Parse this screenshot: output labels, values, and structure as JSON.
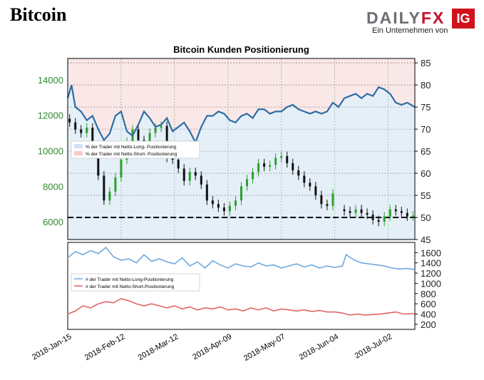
{
  "page": {
    "title": "Bitcoin"
  },
  "logo": {
    "text_main": "DAILY",
    "text_accent": "FX",
    "box_text": "IG",
    "subtitle": "Ein Unternehmen von"
  },
  "colors": {
    "long": "#2e6da4",
    "short": "#d9534f",
    "long_fill": "#cfe2f3",
    "short_fill": "#f5cccc",
    "price_label": "#2e8b2e",
    "candle_up": "#2ca02c",
    "candle_down": "#111111"
  },
  "chart_data": [
    {
      "type": "line",
      "title": "Bitcoin Kunden Positionierung",
      "left_axis_ticks": [
        "6000",
        "8000",
        "10000",
        "12000",
        "14000"
      ],
      "left_axis_range": [
        5000,
        15200
      ],
      "right_axis_ticks": [
        "45",
        "50",
        "55",
        "60",
        "65",
        "70",
        "75",
        "80",
        "85"
      ],
      "right_axis_range": [
        45,
        86
      ],
      "x_tick_labels": [
        "2018-Jan-15",
        "2018-Feb-12",
        "2018-Mar-12",
        "2018-Apr-09",
        "2018-May-07",
        "2018-Jun-04",
        "2018-Jul-02"
      ],
      "x_range": [
        "2018-01-15",
        "2018-07-16"
      ],
      "legend": [
        "% der Trader mit Netto-Long- Positionierung",
        "% der Trader mit Netto-Short- Positionierung"
      ],
      "legend_placement": "middle-left",
      "grid": true,
      "reference_line_pct": 50,
      "pct_long_series": {
        "name": "% der Trader mit Netto-Long- Positionierung",
        "x": [
          "2018-01-15",
          "2018-01-17",
          "2018-01-19",
          "2018-01-22",
          "2018-01-25",
          "2018-01-28",
          "2018-01-31",
          "2018-02-03",
          "2018-02-06",
          "2018-02-09",
          "2018-02-12",
          "2018-02-15",
          "2018-02-18",
          "2018-02-21",
          "2018-02-24",
          "2018-02-27",
          "2018-03-02",
          "2018-03-05",
          "2018-03-08",
          "2018-03-11",
          "2018-03-14",
          "2018-03-17",
          "2018-03-20",
          "2018-03-23",
          "2018-03-26",
          "2018-03-29",
          "2018-04-01",
          "2018-04-04",
          "2018-04-07",
          "2018-04-10",
          "2018-04-13",
          "2018-04-16",
          "2018-04-19",
          "2018-04-22",
          "2018-04-25",
          "2018-04-28",
          "2018-05-01",
          "2018-05-04",
          "2018-05-07",
          "2018-05-10",
          "2018-05-13",
          "2018-05-16",
          "2018-05-19",
          "2018-05-22",
          "2018-05-25",
          "2018-05-28",
          "2018-05-31",
          "2018-06-03",
          "2018-06-06",
          "2018-06-09",
          "2018-06-12",
          "2018-06-15",
          "2018-06-18",
          "2018-06-21",
          "2018-06-24",
          "2018-06-27",
          "2018-06-30",
          "2018-07-03",
          "2018-07-06",
          "2018-07-09",
          "2018-07-12",
          "2018-07-16"
        ],
        "values": [
          77,
          80,
          75,
          74,
          72,
          73,
          70,
          67.5,
          69,
          73,
          74,
          69.5,
          68.5,
          71,
          74,
          72.5,
          70.5,
          71,
          72.5,
          69.5,
          70.5,
          71.5,
          69.5,
          67,
          70.5,
          73,
          73,
          74,
          73.5,
          72,
          71.5,
          73,
          73.5,
          72.5,
          74.5,
          74.5,
          73.5,
          74,
          74,
          75,
          75.5,
          74.5,
          74,
          73.5,
          74,
          73.5,
          74,
          76,
          75,
          77,
          77.5,
          78,
          77,
          78,
          77.5,
          79.5,
          79,
          78,
          76,
          75.5,
          76,
          75
        ]
      },
      "price_candles": {
        "x": [
          "2018-01-16",
          "2018-01-19",
          "2018-01-22",
          "2018-01-25",
          "2018-01-28",
          "2018-01-31",
          "2018-02-03",
          "2018-02-06",
          "2018-02-09",
          "2018-02-12",
          "2018-02-15",
          "2018-02-18",
          "2018-02-21",
          "2018-02-24",
          "2018-02-27",
          "2018-03-02",
          "2018-03-05",
          "2018-03-08",
          "2018-03-11",
          "2018-03-14",
          "2018-03-17",
          "2018-03-20",
          "2018-03-23",
          "2018-03-26",
          "2018-03-29",
          "2018-04-01",
          "2018-04-04",
          "2018-04-07",
          "2018-04-10",
          "2018-04-13",
          "2018-04-16",
          "2018-04-19",
          "2018-04-22",
          "2018-04-25",
          "2018-04-28",
          "2018-05-01",
          "2018-05-04",
          "2018-05-07",
          "2018-05-10",
          "2018-05-13",
          "2018-05-16",
          "2018-05-19",
          "2018-05-22",
          "2018-05-25",
          "2018-05-28",
          "2018-05-31",
          "2018-06-03",
          "2018-06-09",
          "2018-06-12",
          "2018-06-15",
          "2018-06-18",
          "2018-06-21",
          "2018-06-24",
          "2018-06-27",
          "2018-06-30",
          "2018-07-03",
          "2018-07-06",
          "2018-07-09",
          "2018-07-12",
          "2018-07-15"
        ],
        "open": [
          11800,
          11600,
          11200,
          11000,
          11300,
          10300,
          8600,
          7200,
          7700,
          8500,
          9500,
          10500,
          11200,
          10600,
          10500,
          11000,
          11300,
          11400,
          9600,
          9500,
          9000,
          8300,
          8800,
          8600,
          8100,
          7200,
          7000,
          6800,
          6600,
          6900,
          7200,
          8000,
          8400,
          8800,
          9300,
          9100,
          9200,
          9600,
          9700,
          9300,
          8900,
          8600,
          8200,
          8000,
          7500,
          7000,
          6900,
          6700,
          6600,
          6500,
          6700,
          6500,
          6400,
          6100,
          6000,
          6300,
          6700,
          6600,
          6500,
          6300
        ],
        "close": [
          11600,
          11200,
          11000,
          11300,
          10300,
          8600,
          7200,
          7700,
          8500,
          9500,
          10500,
          11200,
          10600,
          10500,
          11000,
          11300,
          11400,
          9600,
          9500,
          9000,
          8300,
          8800,
          8600,
          8100,
          7200,
          7000,
          6800,
          6600,
          6900,
          7200,
          8000,
          8400,
          8800,
          9300,
          9100,
          9200,
          9600,
          9700,
          9300,
          8900,
          8600,
          8200,
          8000,
          7500,
          7000,
          6900,
          7600,
          6600,
          6500,
          6700,
          6500,
          6400,
          6100,
          6000,
          6300,
          6700,
          6600,
          6500,
          6300,
          6350
        ]
      }
    },
    {
      "type": "line",
      "left_axis_ticks": [],
      "right_axis_ticks": [
        "200",
        "400",
        "600",
        "800",
        "1000",
        "1200",
        "1400",
        "1600"
      ],
      "right_axis_range": [
        100,
        1800
      ],
      "legend": [
        "# der Trader mit Netto-Long-Positionierung",
        "# der Trader mit Netto-Short-Positionierung"
      ],
      "legend_placement": "middle-left",
      "series": [
        {
          "name": "# der Trader mit Netto-Long-Positionierung",
          "x": [
            "2018-01-15",
            "2018-01-19",
            "2018-01-23",
            "2018-01-27",
            "2018-01-31",
            "2018-02-04",
            "2018-02-08",
            "2018-02-12",
            "2018-02-16",
            "2018-02-20",
            "2018-02-24",
            "2018-02-28",
            "2018-03-04",
            "2018-03-08",
            "2018-03-12",
            "2018-03-16",
            "2018-03-20",
            "2018-03-24",
            "2018-03-28",
            "2018-04-01",
            "2018-04-05",
            "2018-04-09",
            "2018-04-13",
            "2018-04-17",
            "2018-04-21",
            "2018-04-25",
            "2018-04-29",
            "2018-05-03",
            "2018-05-07",
            "2018-05-11",
            "2018-05-15",
            "2018-05-19",
            "2018-05-23",
            "2018-05-27",
            "2018-05-31",
            "2018-06-04",
            "2018-06-08",
            "2018-06-10",
            "2018-06-14",
            "2018-06-18",
            "2018-06-22",
            "2018-06-26",
            "2018-06-30",
            "2018-07-04",
            "2018-07-08",
            "2018-07-12",
            "2018-07-16"
          ],
          "values": [
            1500,
            1620,
            1560,
            1640,
            1580,
            1700,
            1520,
            1450,
            1480,
            1400,
            1560,
            1430,
            1480,
            1420,
            1380,
            1500,
            1340,
            1420,
            1300,
            1440,
            1360,
            1300,
            1380,
            1340,
            1320,
            1400,
            1340,
            1360,
            1300,
            1340,
            1380,
            1320,
            1360,
            1300,
            1340,
            1310,
            1340,
            1560,
            1460,
            1400,
            1380,
            1360,
            1340,
            1300,
            1280,
            1290,
            1270
          ]
        },
        {
          "name": "# der Trader mit Netto-Short-Positionierung",
          "x": [
            "2018-01-15",
            "2018-01-19",
            "2018-01-23",
            "2018-01-27",
            "2018-01-31",
            "2018-02-04",
            "2018-02-08",
            "2018-02-12",
            "2018-02-16",
            "2018-02-20",
            "2018-02-24",
            "2018-02-28",
            "2018-03-04",
            "2018-03-08",
            "2018-03-12",
            "2018-03-16",
            "2018-03-20",
            "2018-03-24",
            "2018-03-28",
            "2018-04-01",
            "2018-04-05",
            "2018-04-09",
            "2018-04-13",
            "2018-04-17",
            "2018-04-21",
            "2018-04-25",
            "2018-04-29",
            "2018-05-03",
            "2018-05-07",
            "2018-05-11",
            "2018-05-15",
            "2018-05-19",
            "2018-05-23",
            "2018-05-27",
            "2018-05-31",
            "2018-06-04",
            "2018-06-08",
            "2018-06-12",
            "2018-06-16",
            "2018-06-20",
            "2018-06-24",
            "2018-06-28",
            "2018-07-02",
            "2018-07-06",
            "2018-07-10",
            "2018-07-16"
          ],
          "values": [
            400,
            460,
            560,
            520,
            600,
            640,
            620,
            700,
            660,
            600,
            560,
            600,
            560,
            520,
            560,
            500,
            540,
            480,
            520,
            500,
            540,
            480,
            500,
            460,
            520,
            480,
            520,
            460,
            500,
            480,
            460,
            480,
            450,
            470,
            440,
            440,
            420,
            380,
            400,
            380,
            390,
            400,
            420,
            440,
            400,
            410
          ]
        }
      ]
    }
  ]
}
